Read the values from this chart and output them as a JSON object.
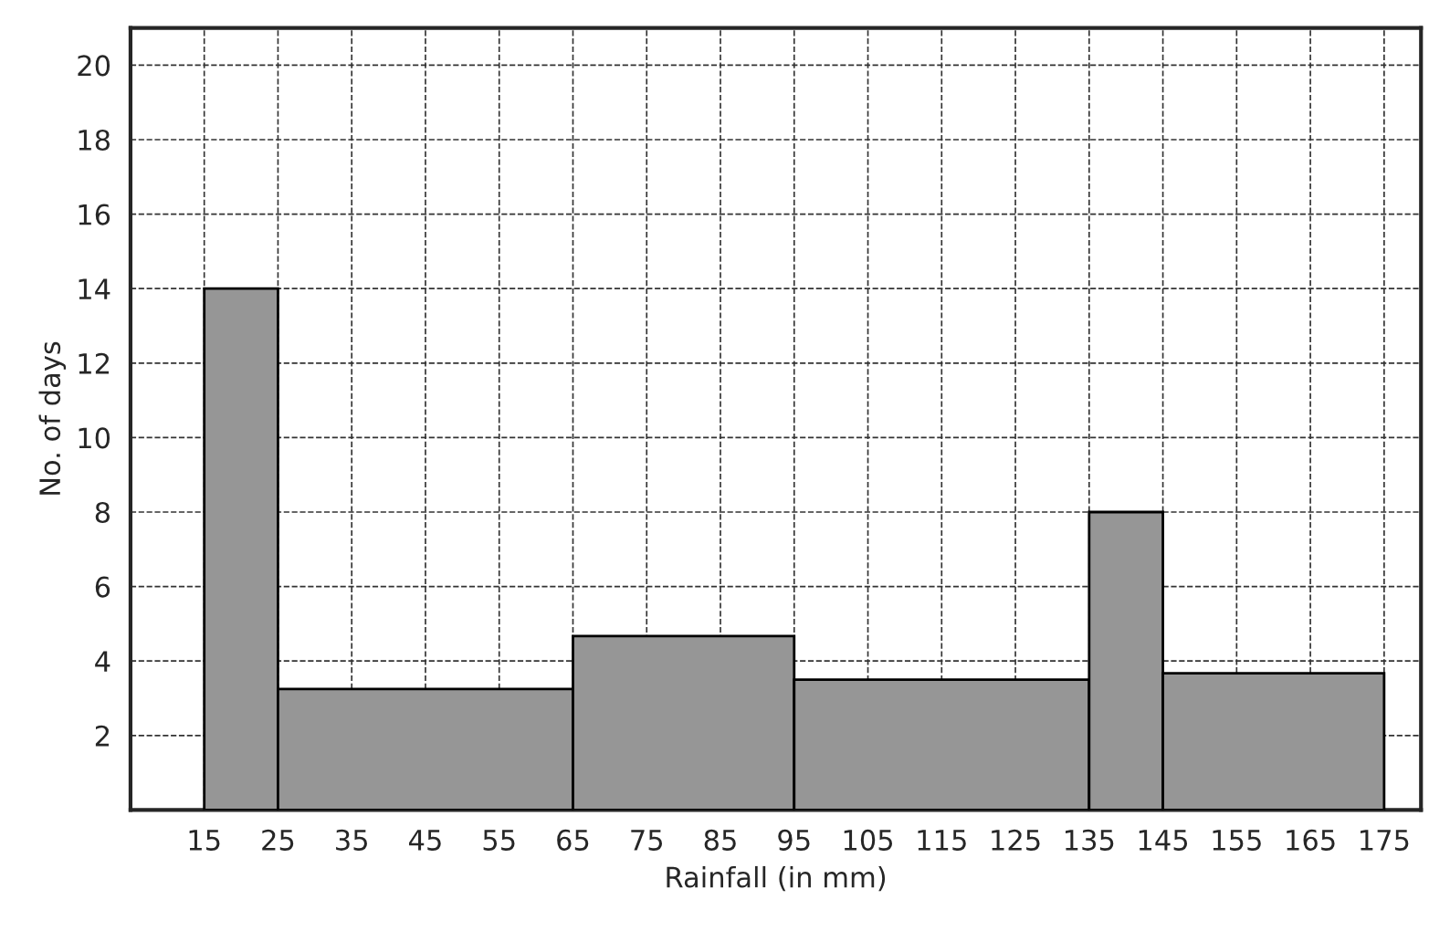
{
  "chart_data": {
    "type": "histogram",
    "xlabel": "Rainfall (in mm)",
    "ylabel": "No. of days",
    "bins": [
      15,
      25,
      65,
      95,
      135,
      145,
      175
    ],
    "values": [
      14,
      3.25,
      4.67,
      3.5,
      8,
      3.67
    ],
    "color": "#969696",
    "xlim": [
      5,
      180
    ],
    "xticks": [
      15,
      25,
      35,
      45,
      55,
      65,
      75,
      85,
      95,
      105,
      115,
      125,
      135,
      145,
      155,
      165,
      175
    ],
    "ylim": [
      0,
      21
    ],
    "yticks": [
      2,
      4,
      6,
      8,
      10,
      12,
      14,
      16,
      18,
      20
    ],
    "grid": true
  }
}
